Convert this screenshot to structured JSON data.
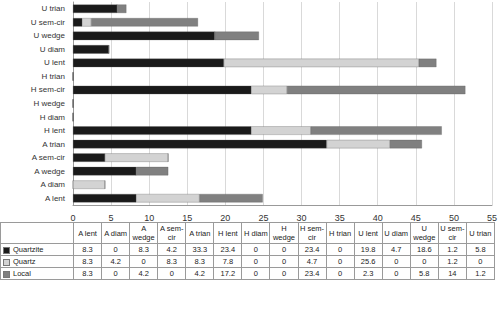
{
  "chart_data": {
    "type": "bar",
    "orientation": "horizontal",
    "stacked": true,
    "grid": true,
    "categories": [
      "A lent",
      "A diam",
      "A wedge",
      "A sem-cir",
      "A trian",
      "H lent",
      "H diam",
      "H wedge",
      "H sem-cir",
      "H trian",
      "U lent",
      "U diam",
      "U wedge",
      "U sem-cir",
      "U trian"
    ],
    "series": [
      {
        "name": "Quartzite",
        "color": "#1a1a1a",
        "values": [
          8.3,
          0,
          8.3,
          4.2,
          33.3,
          23.4,
          0,
          0,
          23.4,
          0,
          19.8,
          4.7,
          18.6,
          1.2,
          5.8
        ]
      },
      {
        "name": "Quartz",
        "color": "#d3d3d3",
        "values": [
          8.3,
          4.2,
          0,
          8.3,
          8.3,
          7.8,
          0,
          0,
          4.7,
          0,
          25.6,
          0,
          0,
          1.2,
          0
        ]
      },
      {
        "name": "Local",
        "color": "#808080",
        "values": [
          8.3,
          0,
          4.2,
          0,
          4.2,
          17.2,
          0,
          0,
          23.4,
          0,
          2.3,
          0,
          5.8,
          14,
          1.2
        ]
      }
    ],
    "xlim": [
      0,
      55
    ],
    "xticks": [
      0,
      5,
      10,
      15,
      20,
      25,
      30,
      35,
      40,
      45,
      50,
      55
    ]
  }
}
